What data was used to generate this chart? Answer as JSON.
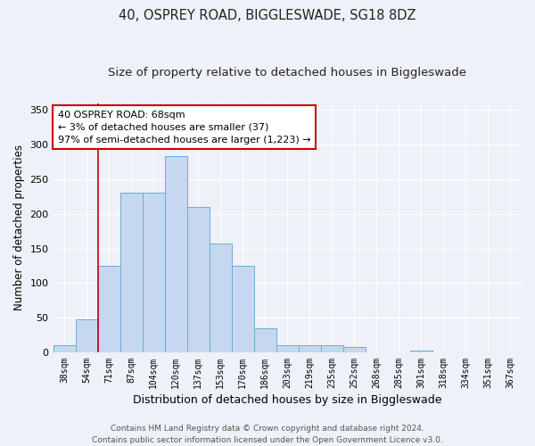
{
  "title1": "40, OSPREY ROAD, BIGGLESWADE, SG18 8DZ",
  "title2": "Size of property relative to detached houses in Biggleswade",
  "xlabel": "Distribution of detached houses by size in Biggleswade",
  "ylabel": "Number of detached properties",
  "bar_values": [
    10,
    47,
    125,
    230,
    230,
    283,
    210,
    157,
    125,
    35,
    10,
    10,
    10,
    8,
    0,
    0,
    3,
    0,
    0,
    0,
    0
  ],
  "bar_labels": [
    "38sqm",
    "54sqm",
    "71sqm",
    "87sqm",
    "104sqm",
    "120sqm",
    "137sqm",
    "153sqm",
    "170sqm",
    "186sqm",
    "203sqm",
    "219sqm",
    "235sqm",
    "252sqm",
    "268sqm",
    "285sqm",
    "301sqm",
    "318sqm",
    "334sqm",
    "351sqm",
    "367sqm"
  ],
  "bar_color": "#c5d8f0",
  "bar_edge_color": "#6baed6",
  "vline_color": "#cc0000",
  "vline_x": 1.5,
  "annotation_line1": "40 OSPREY ROAD: 68sqm",
  "annotation_line2": "← 3% of detached houses are smaller (37)",
  "annotation_line3": "97% of semi-detached houses are larger (1,223) →",
  "annotation_box_color": "#ffffff",
  "annotation_box_edge_color": "#cc0000",
  "ylim": [
    0,
    360
  ],
  "yticks": [
    0,
    50,
    100,
    150,
    200,
    250,
    300,
    350
  ],
  "bg_color": "#eef1f7",
  "plot_bg_color": "#eef1f7",
  "grid_color": "#ffffff",
  "footer1": "Contains HM Land Registry data © Crown copyright and database right 2024.",
  "footer2": "Contains public sector information licensed under the Open Government Licence v3.0.",
  "title1_fontsize": 10.5,
  "title2_fontsize": 9.5,
  "ylabel_fontsize": 8.5,
  "xlabel_fontsize": 9,
  "tick_fontsize": 7,
  "ann_fontsize": 8,
  "footer_fontsize": 6.5
}
